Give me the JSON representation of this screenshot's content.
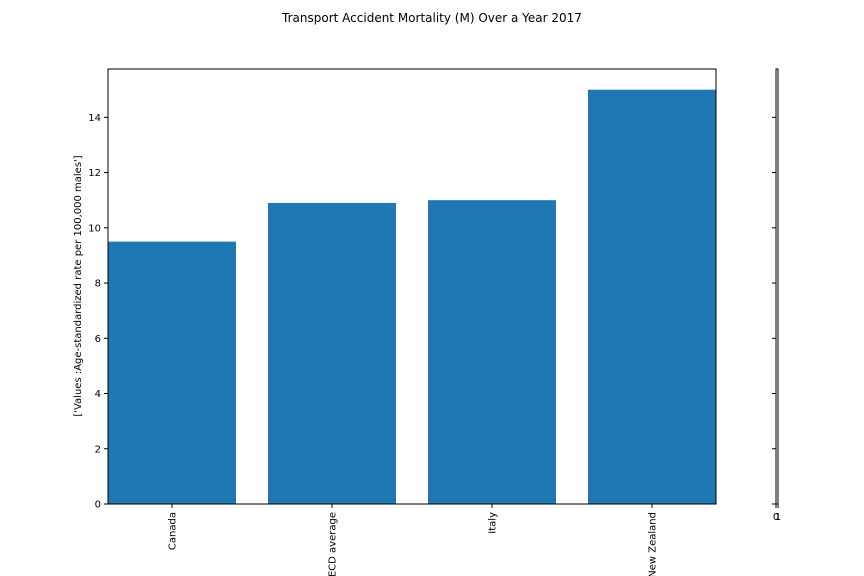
{
  "chart_data": {
    "type": "bar",
    "title": "Transport Accident Mortality (M) Over a Year 2017",
    "xlabel": "",
    "ylabel": "['Values :Age-standardized rate per 100,000 males']",
    "categories": [
      "Canada",
      "OECD average",
      "Italy",
      "New Zealand"
    ],
    "values": [
      9.5,
      10.9,
      11.0,
      15.0
    ],
    "ylim": [
      0,
      15.75
    ],
    "yticks": [
      0,
      2,
      4,
      6,
      8,
      10,
      12,
      14
    ],
    "bar_color": "#1f77b4",
    "grid": false,
    "legend": "none",
    "side_axis": {
      "xtick_labels": [
        "0",
        "1"
      ],
      "yticks": [
        0,
        2,
        4,
        6,
        8,
        10,
        12,
        14
      ]
    }
  }
}
